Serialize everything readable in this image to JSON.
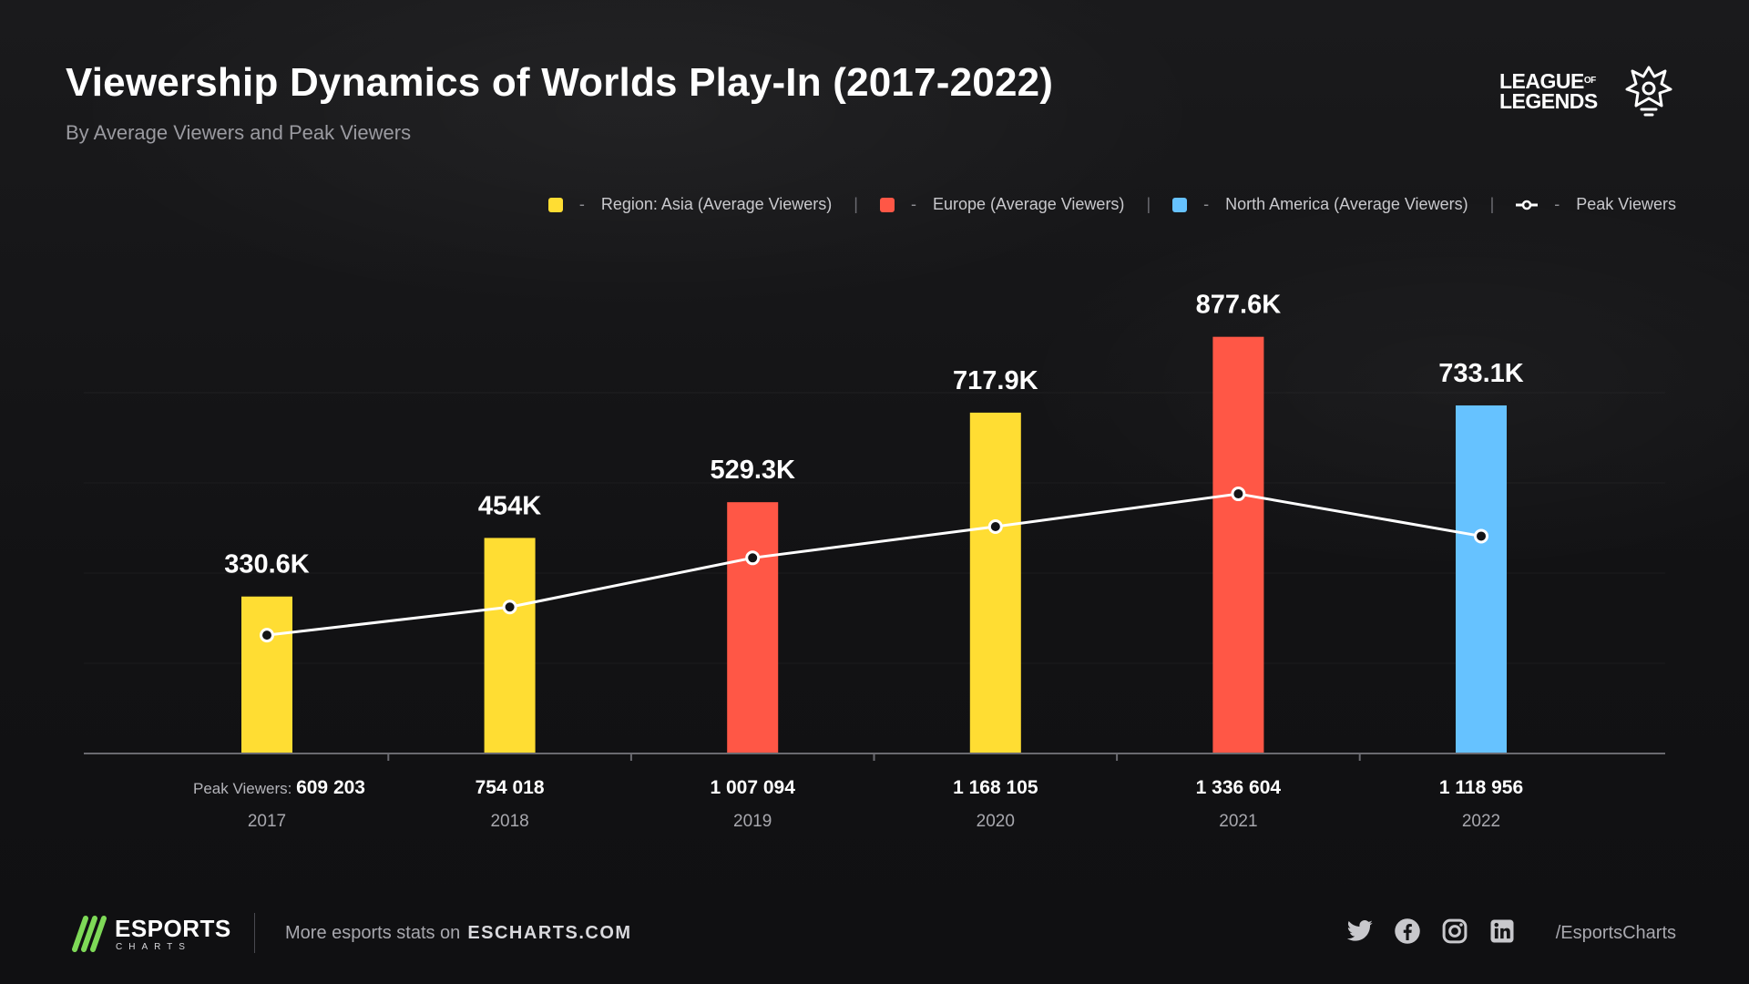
{
  "header": {
    "title": "Viewership Dynamics of Worlds Play-In (2017-2022)",
    "subtitle": "By Average Viewers and Peak Viewers",
    "brand_line1": "LEAGUE",
    "brand_of": "OF",
    "brand_line2": "LEGENDS"
  },
  "legend": {
    "dash": "-",
    "separator": "|",
    "items": [
      {
        "label": "Region: Asia (Average Viewers)",
        "color": "#FFDD33"
      },
      {
        "label": "Europe (Average Viewers)",
        "color": "#FF5746"
      },
      {
        "label": "North America (Average Viewers)",
        "color": "#66C2FF"
      },
      {
        "label": "Peak Viewers",
        "color": "#FFFFFF"
      }
    ]
  },
  "chart_data": {
    "type": "bar",
    "title": "Viewership Dynamics of Worlds Play-In (2017-2022)",
    "subtitle": "By Average Viewers and Peak Viewers",
    "categories": [
      "2017",
      "2018",
      "2019",
      "2020",
      "2021",
      "2022"
    ],
    "series": [
      {
        "name": "Average Viewers",
        "values": [
          330600,
          454000,
          529300,
          717900,
          877600,
          733100
        ],
        "labels": [
          "330.6K",
          "454K",
          "529.3K",
          "717.9K",
          "877.6K",
          "733.1K"
        ],
        "regions": [
          "Asia",
          "Asia",
          "Europe",
          "Asia",
          "Europe",
          "North America"
        ]
      },
      {
        "name": "Peak Viewers",
        "type": "line",
        "values": [
          609203,
          754018,
          1007094,
          1168105,
          1336604,
          1118956
        ],
        "labels": [
          "609 203",
          "754 018",
          "1 007 094",
          "1 168 105",
          "1 336 604",
          "1 118 956"
        ]
      }
    ],
    "region_colors": {
      "Asia": "#FFDD33",
      "Europe": "#FF5746",
      "North America": "#66C2FF"
    },
    "peak_prefix": "Peak Viewers:",
    "bar_ylim": [
      0,
      900000
    ],
    "line_ylim": [
      0,
      2200000
    ],
    "grid": true,
    "legend_position": "top-right"
  },
  "footer": {
    "logo_text": "ESPORTS",
    "logo_sub": "CHARTS",
    "more_text": "More esports stats on",
    "site": "ESCHARTS.COM",
    "socials": [
      "twitter-icon",
      "facebook-icon",
      "instagram-icon",
      "linkedin-icon"
    ],
    "handle": "/EsportsCharts"
  }
}
